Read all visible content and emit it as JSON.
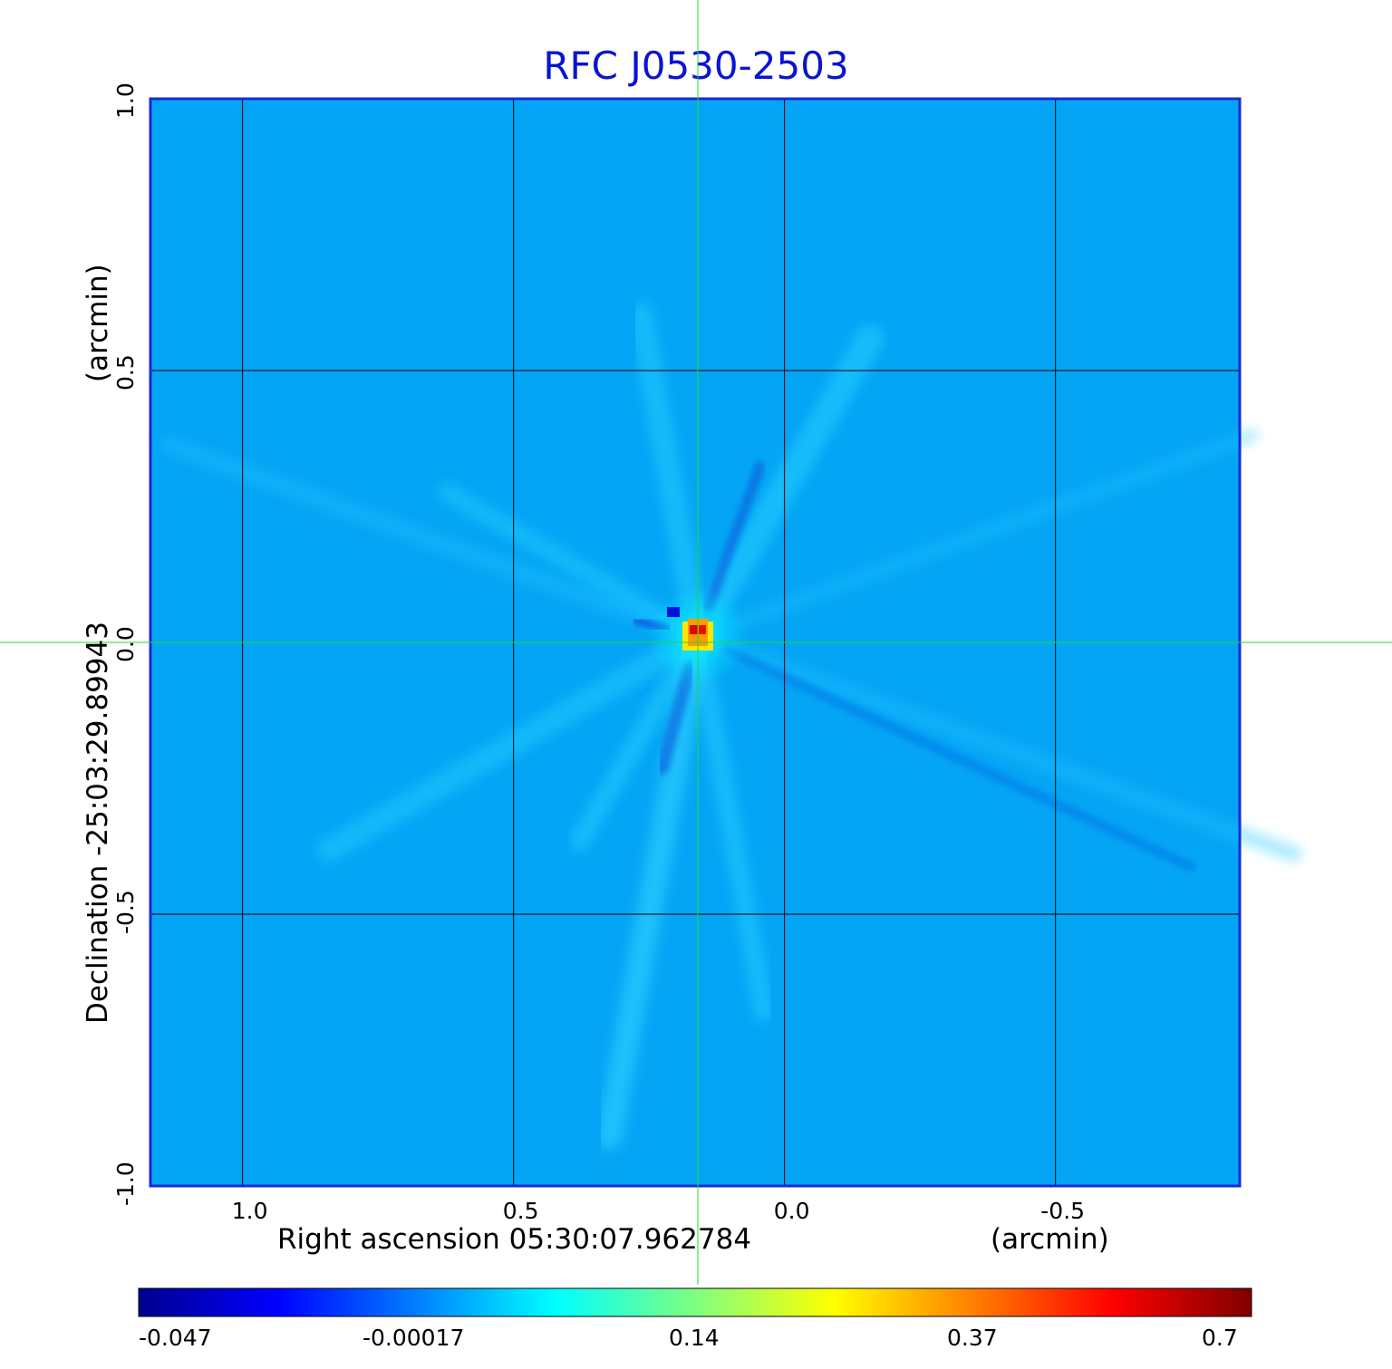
{
  "chart_data": {
    "type": "heatmap",
    "title": "RFC J0530-2503",
    "xlabel": "Right ascension  05:30:07.962784",
    "xunit": "(arcmin)",
    "ylabel": "Declination  -25:03:29.89943",
    "yunit": "(arcmin)",
    "x_range": [
      1.17,
      -0.84
    ],
    "y_range": [
      -1.0,
      1.0
    ],
    "x_reversed": true,
    "xticks": [
      "1.0",
      "0.5",
      "0.0",
      "-0.5"
    ],
    "xtick_values": [
      1.0,
      0.5,
      0.0,
      -0.5
    ],
    "yticks": [
      "-1.0",
      "-0.5",
      "0.0",
      "0.5",
      "1.0"
    ],
    "ytick_values": [
      -1.0,
      -0.5,
      0.0,
      0.5,
      1.0
    ],
    "grid": true,
    "crosshair": {
      "x": 0.16,
      "y": 0.0
    },
    "peak": {
      "x": 0.16,
      "y": 0.01,
      "value": 0.7
    },
    "colorbar": {
      "colormap": "jet",
      "ticks": [
        "-0.047",
        "-0.00017",
        "0.14",
        "0.37",
        "0.7"
      ],
      "min": -0.047,
      "max": 0.7
    }
  },
  "colors": {
    "title": "#0a14d2",
    "background_map": "#05a5f5",
    "frame": "#1a2ad8",
    "grid": "#000000",
    "crosshair": "#22dd22"
  }
}
